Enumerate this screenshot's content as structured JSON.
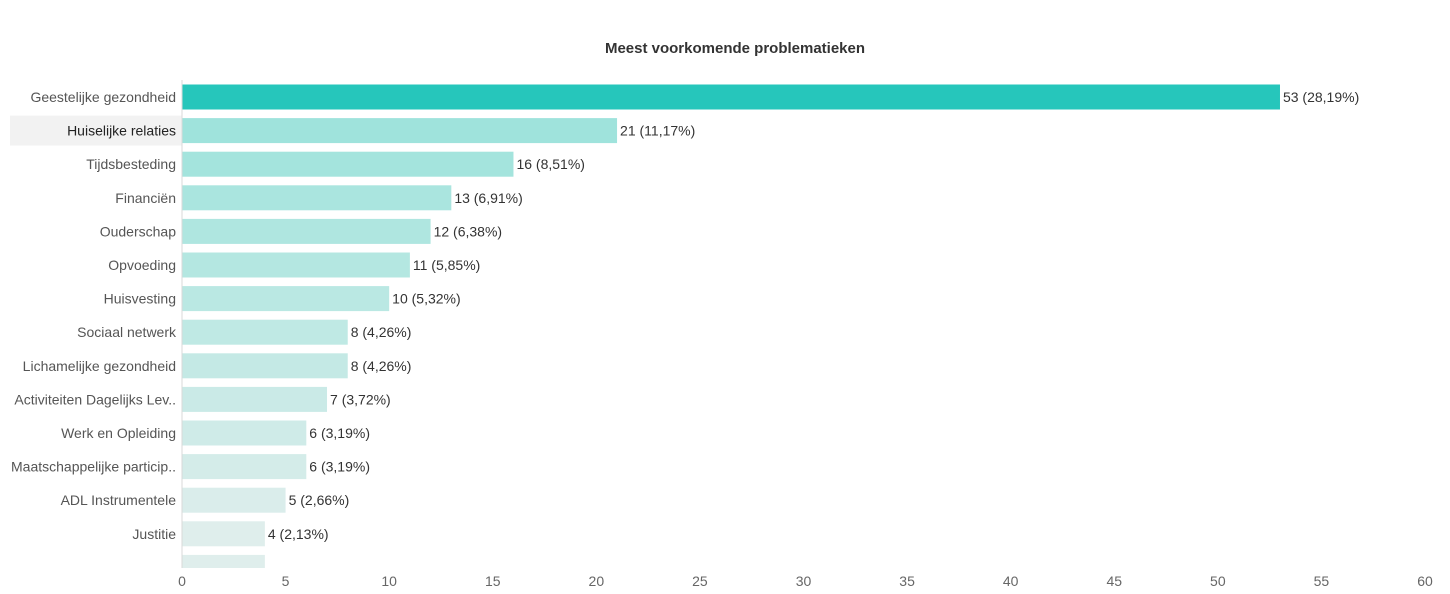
{
  "chart_data": {
    "type": "bar",
    "orientation": "horizontal",
    "title": "Meest voorkomende problematieken",
    "categories": [
      "Geestelijke gezondheid",
      "Huiselijke relaties",
      "Tijdsbesteding",
      "Financiën",
      "Ouderschap",
      "Opvoeding",
      "Huisvesting",
      "Sociaal netwerk",
      "Lichamelijke gezondheid",
      "Activiteiten Dagelijks Lev..",
      "Werk en Opleiding",
      "Maatschappelijke particip..",
      "ADL Instrumentele",
      "Justitie"
    ],
    "values": [
      53,
      21,
      16,
      13,
      12,
      11,
      10,
      8,
      8,
      7,
      6,
      6,
      5,
      4
    ],
    "data_labels": [
      "53 (28,19%)",
      "21 (11,17%)",
      "16 (8,51%)",
      "13 (6,91%)",
      "12 (6,38%)",
      "11 (5,85%)",
      "10 (5,32%)",
      "8 (4,26%)",
      "8 (4,26%)",
      "7 (3,72%)",
      "6 (3,19%)",
      "6 (3,19%)",
      "5 (2,66%)",
      "4 (2,13%)"
    ],
    "partial_next_value": 4,
    "xlim": [
      0,
      60
    ],
    "x_ticks": [
      "0",
      "5",
      "10",
      "15",
      "20",
      "25",
      "30",
      "35",
      "40",
      "45",
      "50",
      "55",
      "60"
    ],
    "xlabel": "",
    "ylabel": "",
    "grid": false,
    "highlighted_category": "Huiselijke relaties",
    "colors": {
      "max_bar": "#26c6bb",
      "light_start": "#9fe3dc",
      "light_end": "#dfeeec",
      "label_highlight_bg": "#f2f2f2"
    }
  }
}
